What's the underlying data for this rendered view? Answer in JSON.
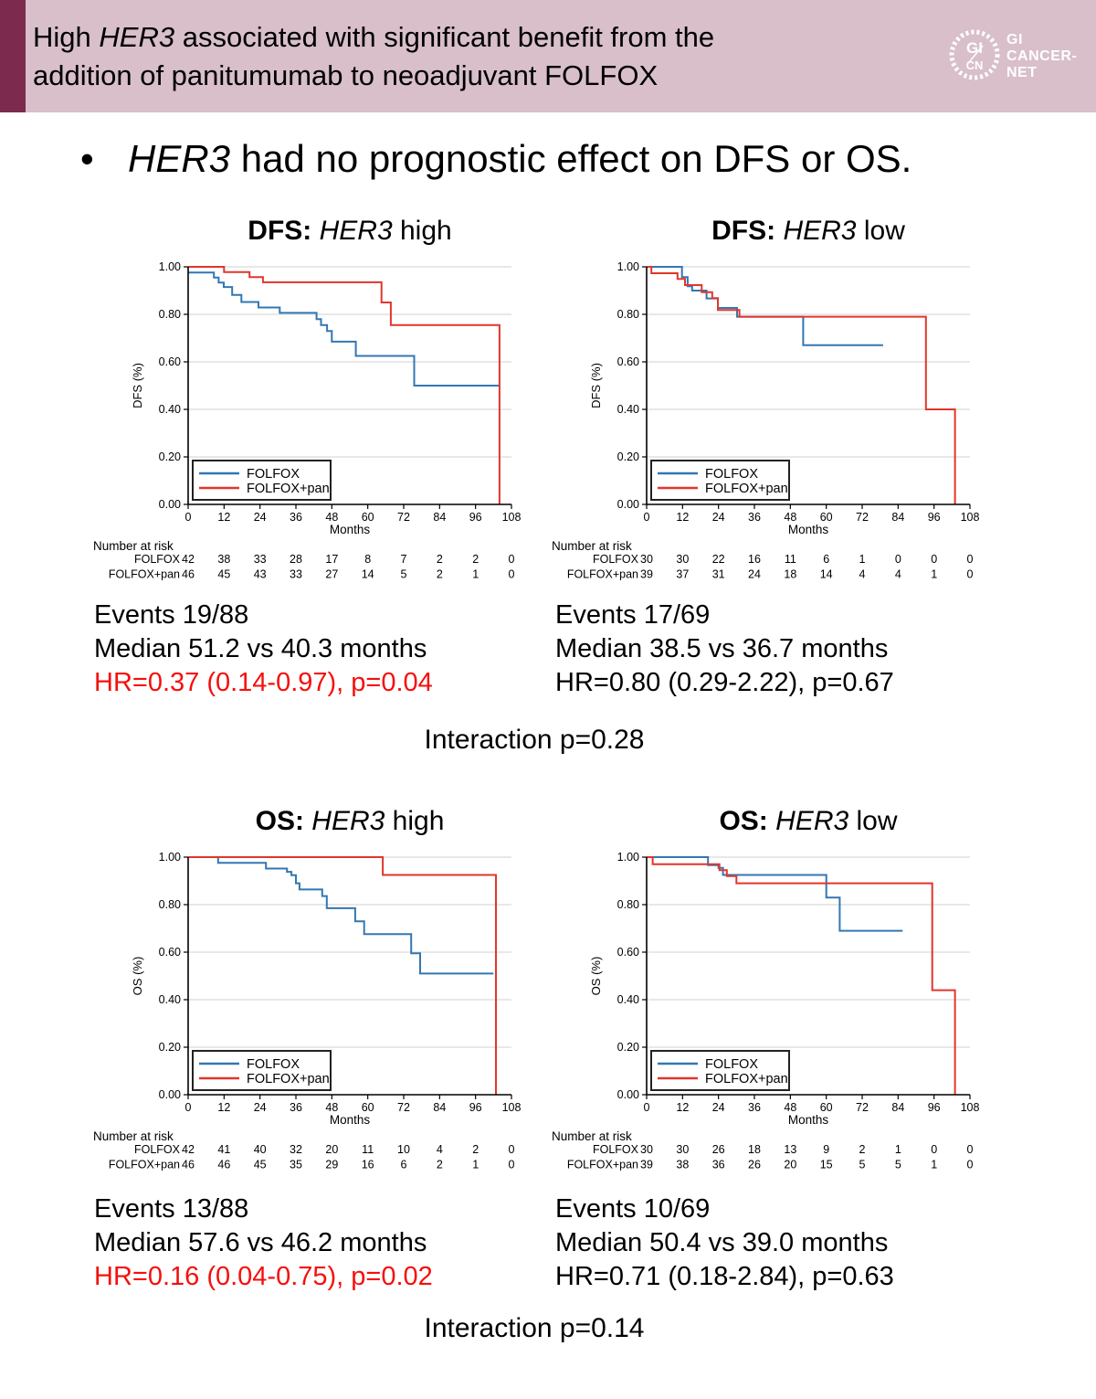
{
  "header": {
    "line1_pre": "High",
    "line1_gene": "HER3",
    "line1_post": "associated with significant benefit from the",
    "line2": "addition of panitumumab to neoadjuvant FOLFOX",
    "bg_color": "#d8bfca",
    "stripe_color": "#7c2b4e",
    "logo": {
      "abbr_top": "GI",
      "abbr_bottom": "CN",
      "name_line1": "GI",
      "name_line2": "CANCER-",
      "name_line3": "NET"
    }
  },
  "bullet": {
    "dot": "•",
    "gene": "HER3",
    "text": "had no prognostic effect on DFS or OS."
  },
  "interaction1": "Interaction p=0.28",
  "interaction2": "Interaction p=0.14",
  "colors": {
    "folfox": "#3377b2",
    "folfox_pan": "#e0362c",
    "grid": "#d9d9d9",
    "axis": "#000000",
    "hr_red": "#f50f0c",
    "header_bg": "#d8bfca",
    "header_stripe": "#7c2b4e"
  },
  "chart_data": [
    {
      "type": "line",
      "subtype": "kaplan-meier-step",
      "title_bold": "DFS:",
      "title_gene": "HER3",
      "title_rest": "high",
      "xlabel": "Months",
      "ylabel": "DFS (%)",
      "xlim": [
        0,
        108
      ],
      "ylim": [
        0,
        1
      ],
      "xticks": [
        0,
        12,
        24,
        36,
        48,
        60,
        72,
        84,
        96,
        108
      ],
      "yticks": [
        "0.00",
        "0.20",
        "0.40",
        "0.60",
        "0.80",
        "1.00"
      ],
      "grid": "horizontal",
      "legend": [
        "FOLFOX",
        "FOLFOX+pan"
      ],
      "legend_position": "lower-left",
      "series": [
        {
          "name": "FOLFOX",
          "color_key": "folfox",
          "points": [
            [
              0,
              0.976
            ],
            [
              8.6,
              0.955
            ],
            [
              10.2,
              0.934
            ],
            [
              11.9,
              0.915
            ],
            [
              14.7,
              0.882
            ],
            [
              17.8,
              0.852
            ],
            [
              23.5,
              0.829
            ],
            [
              30.6,
              0.806
            ],
            [
              42.9,
              0.78
            ],
            [
              44.4,
              0.755
            ],
            [
              46.4,
              0.73
            ],
            [
              48,
              0.685
            ],
            [
              56,
              0.625
            ],
            [
              75.5,
              0.5
            ]
          ],
          "end": 104
        },
        {
          "name": "FOLFOX+pan",
          "color_key": "folfox_pan",
          "points": [
            [
              0,
              1.0
            ],
            [
              12,
              0.978
            ],
            [
              20.5,
              0.957
            ],
            [
              25,
              0.935
            ],
            [
              64.6,
              0.85
            ],
            [
              67.7,
              0.755
            ],
            [
              104,
              0.0
            ]
          ],
          "end": 104
        }
      ],
      "risk": {
        "header": "Number at risk",
        "rows": [
          {
            "label": "FOLFOX",
            "values": [
              42,
              38,
              33,
              28,
              17,
              8,
              7,
              2,
              2,
              0
            ]
          },
          {
            "label": "FOLFOX+pan",
            "values": [
              46,
              45,
              43,
              33,
              27,
              14,
              5,
              2,
              1,
              0
            ]
          }
        ]
      },
      "stats": {
        "events": "Events 19/88",
        "median": "Median 51.2 vs 40.3 months",
        "hr": "HR=0.37 (0.14-0.97), p=0.04",
        "hr_red": true
      }
    },
    {
      "type": "line",
      "subtype": "kaplan-meier-step",
      "title_bold": "DFS:",
      "title_gene": "HER3",
      "title_rest": "low",
      "xlabel": "Months",
      "ylabel": "DFS (%)",
      "xlim": [
        0,
        108
      ],
      "ylim": [
        0,
        1
      ],
      "xticks": [
        0,
        12,
        24,
        36,
        48,
        60,
        72,
        84,
        96,
        108
      ],
      "yticks": [
        "0.00",
        "0.20",
        "0.40",
        "0.60",
        "0.80",
        "1.00"
      ],
      "grid": "horizontal",
      "legend": [
        "FOLFOX",
        "FOLFOX+pan"
      ],
      "legend_position": "lower-left",
      "series": [
        {
          "name": "FOLFOX",
          "color_key": "folfox",
          "points": [
            [
              0,
              1.0
            ],
            [
              11.8,
              0.957
            ],
            [
              13.7,
              0.918
            ],
            [
              15.2,
              0.9
            ],
            [
              20,
              0.867
            ],
            [
              23.8,
              0.827
            ],
            [
              30.2,
              0.79
            ],
            [
              52.3,
              0.67
            ]
          ],
          "end": 79
        },
        {
          "name": "FOLFOX+pan",
          "color_key": "folfox_pan",
          "points": [
            [
              0,
              1.0
            ],
            [
              1.6,
              0.973
            ],
            [
              10.3,
              0.949
            ],
            [
              12.8,
              0.923
            ],
            [
              18.4,
              0.893
            ],
            [
              21.9,
              0.868
            ],
            [
              23.8,
              0.818
            ],
            [
              31,
              0.79
            ],
            [
              93.3,
              0.4
            ],
            [
              103,
              0.0
            ]
          ],
          "end": 103
        }
      ],
      "risk": {
        "header": "Number at risk",
        "rows": [
          {
            "label": "FOLFOX",
            "values": [
              30,
              30,
              22,
              16,
              11,
              6,
              1,
              0,
              0,
              0
            ]
          },
          {
            "label": "FOLFOX+pan",
            "values": [
              39,
              37,
              31,
              24,
              18,
              14,
              4,
              4,
              1,
              0
            ]
          }
        ]
      },
      "stats": {
        "events": "Events 17/69",
        "median": "Median 38.5 vs 36.7 months",
        "hr": "HR=0.80 (0.29-2.22), p=0.67",
        "hr_red": false
      }
    },
    {
      "type": "line",
      "subtype": "kaplan-meier-step",
      "title_bold": "OS:",
      "title_gene": "HER3",
      "title_rest": "high",
      "xlabel": "Months",
      "ylabel": "OS (%)",
      "xlim": [
        0,
        108
      ],
      "ylim": [
        0,
        1
      ],
      "xticks": [
        0,
        12,
        24,
        36,
        48,
        60,
        72,
        84,
        96,
        108
      ],
      "yticks": [
        "0.00",
        "0.20",
        "0.40",
        "0.60",
        "0.80",
        "1.00"
      ],
      "grid": "horizontal",
      "legend": [
        "FOLFOX",
        "FOLFOX+pan"
      ],
      "legend_position": "lower-left",
      "series": [
        {
          "name": "FOLFOX",
          "color_key": "folfox",
          "points": [
            [
              0,
              1.0
            ],
            [
              10,
              0.976
            ],
            [
              26,
              0.952
            ],
            [
              33,
              0.938
            ],
            [
              34.5,
              0.924
            ],
            [
              36,
              0.89
            ],
            [
              37.2,
              0.864
            ],
            [
              44.8,
              0.836
            ],
            [
              46.3,
              0.785
            ],
            [
              55.8,
              0.73
            ],
            [
              58.8,
              0.676
            ],
            [
              74.5,
              0.595
            ],
            [
              77.5,
              0.51
            ]
          ],
          "end": 102
        },
        {
          "name": "FOLFOX+pan",
          "color_key": "folfox_pan",
          "points": [
            [
              0,
              1.0
            ],
            [
              65,
              0.925
            ],
            [
              102.8,
              0.0
            ]
          ],
          "end": 102.8
        }
      ],
      "risk": {
        "header": "Number at risk",
        "rows": [
          {
            "label": "FOLFOX",
            "values": [
              42,
              41,
              40,
              32,
              20,
              11,
              10,
              4,
              2,
              0
            ]
          },
          {
            "label": "FOLFOX+pan",
            "values": [
              46,
              46,
              45,
              35,
              29,
              16,
              6,
              2,
              1,
              0
            ]
          }
        ]
      },
      "stats": {
        "events": "Events 13/88",
        "median": "Median 57.6 vs 46.2 months",
        "hr": "HR=0.16 (0.04-0.75), p=0.02",
        "hr_red": true
      }
    },
    {
      "type": "line",
      "subtype": "kaplan-meier-step",
      "title_bold": "OS:",
      "title_gene": "HER3",
      "title_rest": "low",
      "xlabel": "Months",
      "ylabel": "OS (%)",
      "xlim": [
        0,
        108
      ],
      "ylim": [
        0,
        1
      ],
      "xticks": [
        0,
        12,
        24,
        36,
        48,
        60,
        72,
        84,
        96,
        108
      ],
      "yticks": [
        "0.00",
        "0.20",
        "0.40",
        "0.60",
        "0.80",
        "1.00"
      ],
      "grid": "horizontal",
      "legend": [
        "FOLFOX",
        "FOLFOX+pan"
      ],
      "legend_position": "lower-left",
      "series": [
        {
          "name": "FOLFOX",
          "color_key": "folfox",
          "points": [
            [
              0,
              1.0
            ],
            [
              20.5,
              0.966
            ],
            [
              24,
              0.955
            ],
            [
              25.5,
              0.925
            ],
            [
              60,
              0.83
            ],
            [
              64.5,
              0.69
            ]
          ],
          "end": 85.5
        },
        {
          "name": "FOLFOX+pan",
          "color_key": "folfox_pan",
          "points": [
            [
              0,
              1.0
            ],
            [
              2,
              0.97
            ],
            [
              24.3,
              0.945
            ],
            [
              26.8,
              0.92
            ],
            [
              30,
              0.89
            ],
            [
              95.4,
              0.44
            ],
            [
              103,
              0.0
            ]
          ],
          "end": 103
        }
      ],
      "risk": {
        "header": "Number at risk",
        "rows": [
          {
            "label": "FOLFOX",
            "values": [
              30,
              30,
              26,
              18,
              13,
              9,
              2,
              1,
              0,
              0
            ]
          },
          {
            "label": "FOLFOX+pan",
            "values": [
              39,
              38,
              36,
              26,
              20,
              15,
              5,
              5,
              1,
              0
            ]
          }
        ]
      },
      "stats": {
        "events": "Events 10/69",
        "median": "Median 50.4 vs 39.0 months",
        "hr": "HR=0.71 (0.18-2.84), p=0.63",
        "hr_red": false
      }
    }
  ]
}
